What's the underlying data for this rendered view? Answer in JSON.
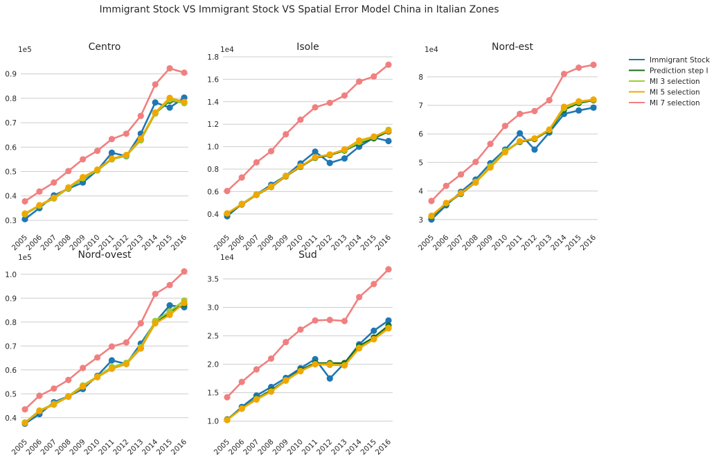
{
  "figure": {
    "title": "Immigrant Stock VS Immigrant Stock VS Spatial Error Model China in Italian Zones"
  },
  "legend": {
    "placement": "right",
    "items": [
      {
        "name": "Immigrant Stock",
        "color": "#1f77b4"
      },
      {
        "name": "Prediction step I",
        "color": "#1a6b1a"
      },
      {
        "name": "MI 3 selection",
        "color": "#9acd32"
      },
      {
        "name": "MI 5 selection",
        "color": "#f0a800"
      },
      {
        "name": "MI 7 selection",
        "color": "#f08080"
      }
    ]
  },
  "chart_data": [
    {
      "type": "line",
      "title": "Centro",
      "exponent_label": "1e5",
      "categories": [
        "2005",
        "2006",
        "2007",
        "2008",
        "2009",
        "2010",
        "2011",
        "2012",
        "2013",
        "2014",
        "2015",
        "2016"
      ],
      "ylim": [
        0.28,
        0.97
      ],
      "yticks": [
        0.3,
        0.4,
        0.5,
        0.6,
        0.7,
        0.8,
        0.9
      ],
      "ytick_labels": [
        "0.3",
        "0.4",
        "0.5",
        "0.6",
        "0.7",
        "0.8",
        "0.9"
      ],
      "grid": true,
      "series": [
        {
          "name": "Immigrant Stock",
          "values": [
            0.305,
            0.35,
            0.402,
            0.43,
            0.455,
            0.505,
            0.577,
            0.563,
            0.655,
            0.783,
            0.762,
            0.803
          ]
        },
        {
          "name": "Prediction step I",
          "values": [
            0.325,
            0.36,
            0.39,
            0.432,
            0.47,
            0.505,
            0.55,
            0.565,
            0.63,
            0.738,
            0.79,
            0.782
          ]
        },
        {
          "name": "MI 3 selection",
          "values": [
            0.325,
            0.36,
            0.39,
            0.432,
            0.472,
            0.505,
            0.55,
            0.565,
            0.628,
            0.738,
            0.795,
            0.78
          ]
        },
        {
          "name": "MI 5 selection",
          "values": [
            0.328,
            0.362,
            0.393,
            0.435,
            0.477,
            0.508,
            0.553,
            0.568,
            0.635,
            0.742,
            0.802,
            0.785
          ]
        },
        {
          "name": "MI 7 selection",
          "values": [
            0.378,
            0.418,
            0.455,
            0.502,
            0.55,
            0.585,
            0.633,
            0.655,
            0.728,
            0.857,
            0.923,
            0.905
          ]
        }
      ]
    },
    {
      "type": "line",
      "title": "Isole",
      "exponent_label": "1e4",
      "categories": [
        "2005",
        "2006",
        "2007",
        "2008",
        "2009",
        "2010",
        "2011",
        "2012",
        "2013",
        "2014",
        "2015",
        "2016"
      ],
      "ylim": [
        0.3,
        1.8
      ],
      "yticks": [
        0.4,
        0.6,
        0.8,
        1.0,
        1.2,
        1.4,
        1.6,
        1.8
      ],
      "ytick_labels": [
        "0.4",
        "0.6",
        "0.8",
        "1.0",
        "1.2",
        "1.4",
        "1.6",
        "1.8"
      ],
      "grid": true,
      "series": [
        {
          "name": "Immigrant Stock",
          "values": [
            0.38,
            0.49,
            0.575,
            0.66,
            0.74,
            0.85,
            0.955,
            0.855,
            0.895,
            1.0,
            1.08,
            1.05
          ]
        },
        {
          "name": "Prediction step I",
          "values": [
            0.4,
            0.485,
            0.57,
            0.64,
            0.735,
            0.82,
            0.9,
            0.925,
            0.965,
            1.03,
            1.075,
            1.135
          ]
        },
        {
          "name": "MI 3 selection",
          "values": [
            0.405,
            0.49,
            0.575,
            0.645,
            0.74,
            0.825,
            0.905,
            0.93,
            0.97,
            1.04,
            1.085,
            1.15
          ]
        },
        {
          "name": "MI 5 selection",
          "values": [
            0.405,
            0.488,
            0.572,
            0.642,
            0.738,
            0.825,
            0.905,
            0.93,
            0.975,
            1.055,
            1.09,
            1.14
          ]
        },
        {
          "name": "MI 7 selection",
          "values": [
            0.605,
            0.725,
            0.86,
            0.96,
            1.11,
            1.24,
            1.35,
            1.39,
            1.455,
            1.58,
            1.625,
            1.73
          ]
        }
      ]
    },
    {
      "type": "line",
      "title": "Nord-est",
      "exponent_label": "1e4",
      "categories": [
        "2005",
        "2006",
        "2007",
        "2008",
        "2009",
        "2010",
        "2011",
        "2012",
        "2013",
        "2014",
        "2015",
        "2016"
      ],
      "ylim": [
        2.8,
        8.7
      ],
      "yticks": [
        3,
        4,
        5,
        6,
        7,
        8
      ],
      "ytick_labels": [
        "3",
        "4",
        "5",
        "6",
        "7",
        "8"
      ],
      "grid": true,
      "series": [
        {
          "name": "Immigrant Stock",
          "values": [
            3.0,
            3.5,
            3.97,
            4.4,
            4.97,
            5.45,
            6.02,
            5.45,
            6.05,
            6.7,
            6.82,
            6.92
          ]
        },
        {
          "name": "Prediction step I",
          "values": [
            3.1,
            3.55,
            3.9,
            4.3,
            4.85,
            5.38,
            5.72,
            5.82,
            6.12,
            6.85,
            7.08,
            7.18
          ]
        },
        {
          "name": "MI 3 selection",
          "values": [
            3.12,
            3.57,
            3.92,
            4.32,
            4.87,
            5.4,
            5.74,
            5.84,
            6.14,
            6.9,
            7.12,
            7.2
          ]
        },
        {
          "name": "MI 5 selection",
          "values": [
            3.13,
            3.58,
            3.92,
            4.3,
            4.82,
            5.36,
            5.74,
            5.84,
            6.15,
            6.95,
            7.14,
            7.2
          ]
        },
        {
          "name": "MI 7 selection",
          "values": [
            3.65,
            4.18,
            4.58,
            5.02,
            5.65,
            6.28,
            6.7,
            6.8,
            7.18,
            8.1,
            8.32,
            8.42
          ]
        }
      ]
    },
    {
      "type": "line",
      "title": "Nord-ovest",
      "exponent_label": "1e5",
      "categories": [
        "2005",
        "2006",
        "2007",
        "2008",
        "2009",
        "2010",
        "2011",
        "2012",
        "2013",
        "2014",
        "2015",
        "2016"
      ],
      "ylim": [
        0.35,
        1.04
      ],
      "yticks": [
        0.4,
        0.5,
        0.6,
        0.7,
        0.8,
        0.9,
        1.0
      ],
      "ytick_labels": [
        "0.4",
        "0.5",
        "0.6",
        "0.7",
        "0.8",
        "0.9",
        "1.0"
      ],
      "grid": true,
      "series": [
        {
          "name": "Immigrant Stock",
          "values": [
            0.375,
            0.415,
            0.465,
            0.49,
            0.52,
            0.575,
            0.64,
            0.625,
            0.71,
            0.8,
            0.87,
            0.862
          ]
        },
        {
          "name": "Prediction step I",
          "values": [
            0.378,
            0.428,
            0.455,
            0.488,
            0.53,
            0.57,
            0.605,
            0.625,
            0.69,
            0.8,
            0.84,
            0.875
          ]
        },
        {
          "name": "MI 3 selection",
          "values": [
            0.38,
            0.43,
            0.458,
            0.49,
            0.535,
            0.572,
            0.612,
            0.63,
            0.695,
            0.805,
            0.845,
            0.89
          ]
        },
        {
          "name": "MI 5 selection",
          "values": [
            0.378,
            0.428,
            0.455,
            0.488,
            0.53,
            0.57,
            0.605,
            0.625,
            0.69,
            0.795,
            0.83,
            0.88
          ]
        },
        {
          "name": "MI 7 selection",
          "values": [
            0.435,
            0.492,
            0.522,
            0.558,
            0.608,
            0.652,
            0.698,
            0.715,
            0.795,
            0.918,
            0.955,
            1.012
          ]
        }
      ]
    },
    {
      "type": "line",
      "title": "Sud",
      "exponent_label": "1e4",
      "categories": [
        "2005",
        "2006",
        "2007",
        "2008",
        "2009",
        "2010",
        "2011",
        "2012",
        "2013",
        "2014",
        "2015",
        "2016"
      ],
      "ylim": [
        0.85,
        3.75
      ],
      "yticks": [
        1.0,
        1.5,
        2.0,
        2.5,
        3.0,
        3.5
      ],
      "ytick_labels": [
        "1.0",
        "1.5",
        "2.0",
        "2.5",
        "3.0",
        "3.5"
      ],
      "grid": true,
      "series": [
        {
          "name": "Immigrant Stock",
          "values": [
            1.02,
            1.25,
            1.45,
            1.6,
            1.76,
            1.93,
            2.09,
            1.75,
            2.02,
            2.35,
            2.59,
            2.77
          ]
        },
        {
          "name": "Prediction step I",
          "values": [
            1.03,
            1.22,
            1.4,
            1.54,
            1.72,
            1.9,
            2.02,
            2.02,
            2.02,
            2.32,
            2.47,
            2.68
          ]
        },
        {
          "name": "MI 3 selection",
          "values": [
            1.02,
            1.22,
            1.39,
            1.52,
            1.72,
            1.88,
            2.0,
            2.0,
            1.98,
            2.29,
            2.44,
            2.64
          ]
        },
        {
          "name": "MI 5 selection",
          "values": [
            1.02,
            1.22,
            1.38,
            1.52,
            1.71,
            1.88,
            2.0,
            1.99,
            1.98,
            2.28,
            2.44,
            2.63
          ]
        },
        {
          "name": "MI 7 selection",
          "values": [
            1.42,
            1.69,
            1.91,
            2.1,
            2.39,
            2.61,
            2.77,
            2.78,
            2.76,
            3.18,
            3.41,
            3.67
          ]
        }
      ]
    }
  ]
}
